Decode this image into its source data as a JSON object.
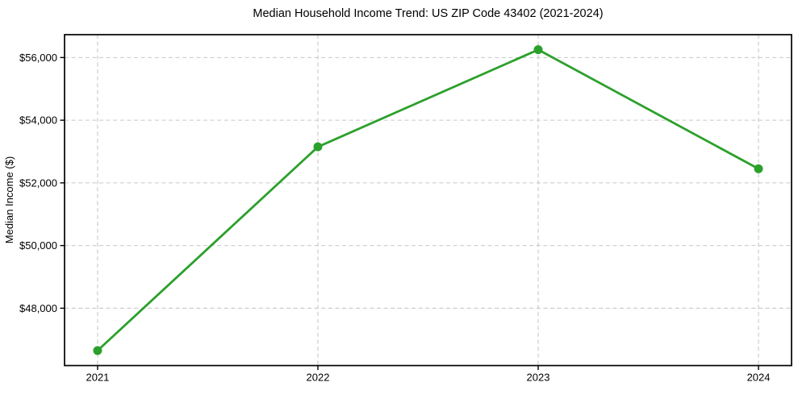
{
  "chart_data": {
    "type": "line",
    "title": "Median Household Income Trend: US ZIP Code 43402 (2021-2024)",
    "xlabel": "",
    "ylabel": "Median Income ($)",
    "x": [
      2021,
      2022,
      2023,
      2024
    ],
    "x_tick_labels": [
      "2021",
      "2022",
      "2023",
      "2024"
    ],
    "series": [
      {
        "name": "Median Household Income",
        "values": [
          46650,
          53150,
          56250,
          52450
        ],
        "color": "#2ca02c",
        "marker": "circle"
      }
    ],
    "y_ticks": [
      48000,
      50000,
      52000,
      54000,
      56000
    ],
    "y_tick_labels": [
      "$48,000",
      "$50,000",
      "$52,000",
      "$54,000",
      "$56,000"
    ],
    "ylim": [
      46170,
      56730
    ],
    "xlim": [
      2020.85,
      2024.15
    ],
    "grid": "both, dashed",
    "legend": "none",
    "colors": {
      "line": "#2ca02c",
      "grid": "#c8c8c8",
      "spine": "#000000",
      "text": "#000000",
      "background": "#ffffff"
    }
  }
}
